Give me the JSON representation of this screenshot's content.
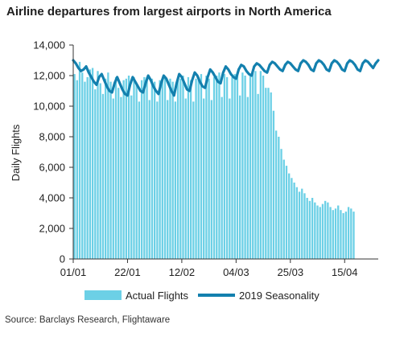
{
  "title": "Airline departures from largest airports in North America",
  "source": "Source: Barclays Research, Flightaware",
  "colors": {
    "actual": "#6cd0e6",
    "seasonality": "#1380ae",
    "axis": "#333333"
  },
  "chart_data": {
    "type": "bar",
    "title": "Airline departures from largest airports in North America",
    "ylabel": "Daily Flights",
    "xlabel": "",
    "ylim": [
      0,
      14000
    ],
    "yticks": [
      0,
      2000,
      4000,
      6000,
      8000,
      10000,
      12000,
      14000
    ],
    "ytick_labels": [
      "0",
      "2,000",
      "4,000",
      "6,000",
      "8,000",
      "10,000",
      "12,000",
      "14,000"
    ],
    "xticks": [
      "01/01",
      "22/01",
      "12/02",
      "04/03",
      "25/03",
      "15/04"
    ],
    "xtick_days": [
      0,
      21,
      42,
      63,
      84,
      105
    ],
    "x_day_range": [
      0,
      118
    ],
    "grid": false,
    "legend": "bottom",
    "series": [
      {
        "name": "Actual Flights",
        "type": "bar",
        "start_day": 0,
        "values": [
          12100,
          11700,
          12900,
          12200,
          11600,
          11900,
          12400,
          12500,
          11100,
          12300,
          11500,
          10800,
          11800,
          12200,
          11600,
          10500,
          11900,
          11200,
          10600,
          11700,
          11800,
          12000,
          10700,
          11900,
          11500,
          10300,
          11700,
          11900,
          11900,
          10400,
          11800,
          11600,
          10300,
          11700,
          11800,
          11900,
          10400,
          11800,
          11600,
          10300,
          11700,
          11800,
          12000,
          10500,
          11900,
          11700,
          10300,
          11800,
          11900,
          12100,
          10500,
          12000,
          11800,
          10400,
          11900,
          12000,
          12200,
          10600,
          12100,
          11900,
          10500,
          11900,
          12100,
          12200,
          10700,
          12200,
          12000,
          10600,
          12100,
          12200,
          12300,
          10800,
          12300,
          12000,
          11200,
          11200,
          10900,
          9700,
          8400,
          8000,
          7200,
          6500,
          6100,
          5600,
          5300,
          5000,
          4700,
          4400,
          4600,
          4300,
          4000,
          3800,
          4000,
          3700,
          3500,
          3400,
          3600,
          3800,
          3700,
          3400,
          3200,
          3300,
          3500,
          3200,
          3000,
          3100,
          3400,
          3300,
          3100
        ]
      },
      {
        "name": "2019 Seasonality",
        "type": "line",
        "start_day": 0,
        "values": [
          13000,
          12800,
          12500,
          12300,
          12400,
          12600,
          12200,
          11900,
          11600,
          11400,
          11900,
          12100,
          11700,
          11300,
          11000,
          10900,
          11500,
          11900,
          11500,
          11100,
          10800,
          10700,
          11400,
          11900,
          11600,
          11300,
          11000,
          10900,
          11500,
          12000,
          11700,
          11300,
          11000,
          10800,
          11500,
          12000,
          11800,
          11400,
          11000,
          10700,
          11500,
          12100,
          11900,
          11500,
          11100,
          11000,
          11700,
          12200,
          12000,
          11600,
          11300,
          11200,
          11900,
          12400,
          12200,
          11900,
          11600,
          11500,
          12200,
          12600,
          12400,
          12100,
          11900,
          11800,
          12400,
          12700,
          12600,
          12300,
          12100,
          12000,
          12600,
          12800,
          12700,
          12500,
          12300,
          12200,
          12700,
          12900,
          12800,
          12600,
          12400,
          12300,
          12700,
          12900,
          12800,
          12600,
          12400,
          12300,
          12800,
          13000,
          12900,
          12700,
          12400,
          12300,
          12800,
          13000,
          12900,
          12700,
          12400,
          12300,
          12800,
          13000,
          12900,
          12700,
          12400,
          12300,
          12800,
          13000,
          12900,
          12700,
          12400,
          12300,
          12800,
          13000,
          12900,
          12700,
          12500,
          12800,
          13000
        ]
      }
    ]
  }
}
